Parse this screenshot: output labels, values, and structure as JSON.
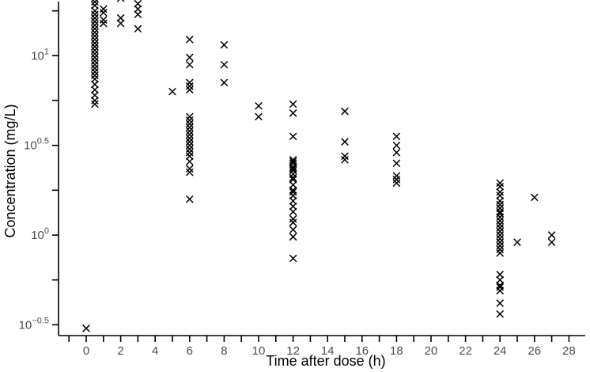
{
  "chart_data": {
    "type": "scatter",
    "xlabel": "Time after dose (h)",
    "ylabel": "Concentration (mg/L)",
    "xlim": [
      -1.5,
      28.6
    ],
    "ylim": [
      -0.54,
      1.46
    ],
    "y_scale": "log10",
    "x_ticks": [
      0,
      2,
      4,
      6,
      8,
      10,
      12,
      14,
      16,
      18,
      20,
      22,
      24,
      26,
      28
    ],
    "x_tick_labels": [
      "0",
      "2",
      "4",
      "6",
      "8",
      "10",
      "12",
      "14",
      "16",
      "18",
      "20",
      "22",
      "24",
      "26",
      "28"
    ],
    "y_major_ticks": [
      -0.5,
      0,
      0.5,
      1
    ],
    "y_tick_labels": [
      {
        "base": "10",
        "exp": "−0.5"
      },
      {
        "base": "10",
        "exp": "0"
      },
      {
        "base": "10",
        "exp": "0.5"
      },
      {
        "base": "10",
        "exp": "1"
      }
    ],
    "y_minor_ticks": [
      -0.25,
      0.25,
      0.75,
      1.25
    ],
    "grid": false,
    "marker": "x",
    "points_log10": [
      [
        0,
        -0.52
      ],
      [
        0.5,
        1.42
      ],
      [
        0.5,
        1.4
      ],
      [
        0.5,
        1.38
      ],
      [
        0.5,
        1.35
      ],
      [
        0.5,
        1.32
      ],
      [
        0.5,
        1.3
      ],
      [
        0.5,
        1.28
      ],
      [
        0.5,
        1.25
      ],
      [
        0.5,
        1.23
      ],
      [
        0.5,
        1.21
      ],
      [
        0.5,
        1.19
      ],
      [
        0.5,
        1.17
      ],
      [
        0.5,
        1.15
      ],
      [
        0.5,
        1.13
      ],
      [
        0.5,
        1.11
      ],
      [
        0.5,
        1.09
      ],
      [
        0.5,
        1.07
      ],
      [
        0.5,
        1.05
      ],
      [
        0.5,
        1.03
      ],
      [
        0.5,
        1.01
      ],
      [
        0.5,
        0.99
      ],
      [
        0.5,
        0.97
      ],
      [
        0.5,
        0.95
      ],
      [
        0.5,
        0.93
      ],
      [
        0.5,
        0.91
      ],
      [
        0.5,
        0.89
      ],
      [
        0.5,
        0.87
      ],
      [
        0.5,
        0.84
      ],
      [
        0.5,
        0.81
      ],
      [
        0.5,
        0.78
      ],
      [
        0.5,
        0.75
      ],
      [
        0.5,
        0.73
      ],
      [
        1,
        1.38
      ],
      [
        1,
        1.35
      ],
      [
        1,
        1.26
      ],
      [
        1,
        1.24
      ],
      [
        1,
        1.2
      ],
      [
        1,
        1.18
      ],
      [
        2,
        1.32
      ],
      [
        2,
        1.21
      ],
      [
        2,
        1.18
      ],
      [
        3,
        1.29
      ],
      [
        3,
        1.26
      ],
      [
        3,
        1.23
      ],
      [
        3,
        1.15
      ],
      [
        5,
        0.8
      ],
      [
        6,
        1.09
      ],
      [
        6,
        0.99
      ],
      [
        6,
        0.95
      ],
      [
        6,
        0.85
      ],
      [
        6,
        0.83
      ],
      [
        6,
        0.81
      ],
      [
        6,
        0.66
      ],
      [
        6,
        0.64
      ],
      [
        6,
        0.62
      ],
      [
        6,
        0.6
      ],
      [
        6,
        0.58
      ],
      [
        6,
        0.56
      ],
      [
        6,
        0.54
      ],
      [
        6,
        0.52
      ],
      [
        6,
        0.5
      ],
      [
        6,
        0.48
      ],
      [
        6,
        0.46
      ],
      [
        6,
        0.44
      ],
      [
        6,
        0.41
      ],
      [
        6,
        0.37
      ],
      [
        6,
        0.35
      ],
      [
        6,
        0.2
      ],
      [
        8,
        1.06
      ],
      [
        8,
        0.95
      ],
      [
        8,
        0.85
      ],
      [
        10,
        0.72
      ],
      [
        10,
        0.66
      ],
      [
        12,
        0.73
      ],
      [
        12,
        0.68
      ],
      [
        12,
        0.55
      ],
      [
        12,
        0.42
      ],
      [
        12,
        0.41
      ],
      [
        12,
        0.4
      ],
      [
        12,
        0.38
      ],
      [
        12,
        0.37
      ],
      [
        12,
        0.36
      ],
      [
        12,
        0.34
      ],
      [
        12,
        0.32
      ],
      [
        12,
        0.31
      ],
      [
        12,
        0.28
      ],
      [
        12,
        0.25
      ],
      [
        12,
        0.24
      ],
      [
        12,
        0.22
      ],
      [
        12,
        0.19
      ],
      [
        12,
        0.16
      ],
      [
        12,
        0.13
      ],
      [
        12,
        0.09
      ],
      [
        12,
        0.07
      ],
      [
        12,
        0.03
      ],
      [
        12,
        -0.01
      ],
      [
        12,
        -0.13
      ],
      [
        15,
        0.69
      ],
      [
        15,
        0.52
      ],
      [
        15,
        0.44
      ],
      [
        15,
        0.42
      ],
      [
        18,
        0.55
      ],
      [
        18,
        0.5
      ],
      [
        18,
        0.46
      ],
      [
        18,
        0.4
      ],
      [
        18,
        0.33
      ],
      [
        18,
        0.31
      ],
      [
        18,
        0.29
      ],
      [
        24,
        0.29
      ],
      [
        24,
        0.27
      ],
      [
        24,
        0.24
      ],
      [
        24,
        0.22
      ],
      [
        24,
        0.19
      ],
      [
        24,
        0.17
      ],
      [
        24,
        0.15
      ],
      [
        24,
        0.13
      ],
      [
        24,
        0.12
      ],
      [
        24,
        0.1
      ],
      [
        24,
        0.08
      ],
      [
        24,
        0.06
      ],
      [
        24,
        0.04
      ],
      [
        24,
        0.02
      ],
      [
        24,
        0.0
      ],
      [
        24,
        -0.02
      ],
      [
        24,
        -0.04
      ],
      [
        24,
        -0.06
      ],
      [
        24,
        -0.08
      ],
      [
        24,
        -0.1
      ],
      [
        24,
        -0.22
      ],
      [
        24,
        -0.25
      ],
      [
        24,
        -0.28
      ],
      [
        24,
        -0.29
      ],
      [
        24,
        -0.31
      ],
      [
        24,
        -0.38
      ],
      [
        24,
        -0.44
      ],
      [
        25,
        -0.04
      ],
      [
        26,
        0.21
      ],
      [
        27,
        0.0
      ],
      [
        27,
        -0.04
      ]
    ]
  }
}
